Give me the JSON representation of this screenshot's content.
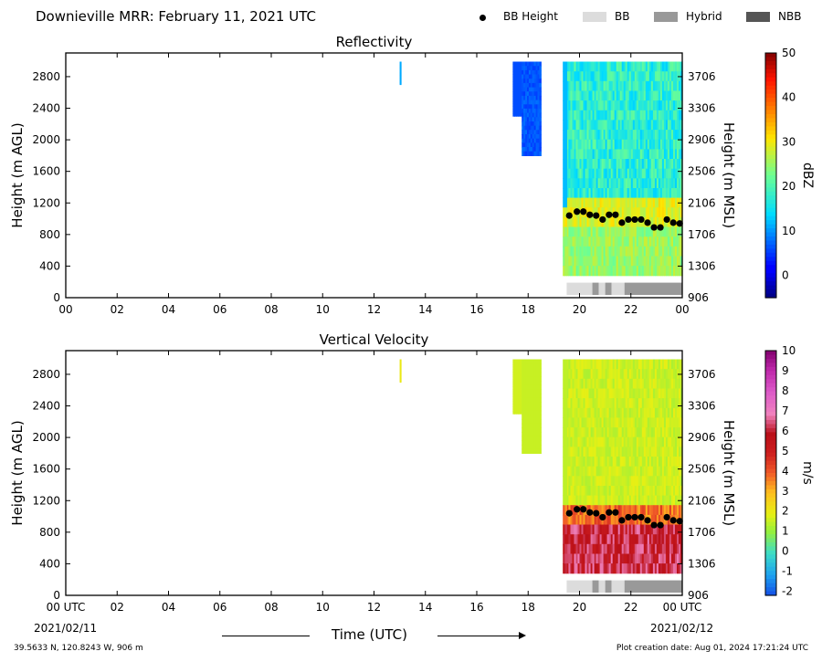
{
  "header": {
    "title": "Downieville MRR:  February 11, 2021 UTC",
    "legend": [
      {
        "label": "BB Height",
        "kind": "dot",
        "color": "#000000"
      },
      {
        "label": "BB",
        "kind": "swatch",
        "color": "#dcdcdc"
      },
      {
        "label": "Hybrid",
        "kind": "swatch",
        "color": "#999999"
      },
      {
        "label": "NBB",
        "kind": "swatch",
        "color": "#555555"
      }
    ]
  },
  "footer": {
    "location": "39.5633 N, 120.8243 W, 906 m",
    "creation": "Plot creation date: Aug 01, 2024 17:21:24 UTC",
    "xlabel": "Time (UTC)",
    "date_start": "2021/02/11",
    "date_end": "2021/02/12"
  },
  "chart_data": [
    {
      "type": "heatmap",
      "title": "Reflectivity",
      "ylabel": "Height (m AGL)",
      "y2label": "Height (m MSL)",
      "xlim": [
        0,
        24
      ],
      "ylim": [
        0,
        3100
      ],
      "xticks": [
        "00",
        "02",
        "04",
        "06",
        "08",
        "10",
        "12",
        "14",
        "16",
        "18",
        "20",
        "22",
        "00"
      ],
      "yticks": [
        0,
        400,
        800,
        1200,
        1600,
        2000,
        2400,
        2800
      ],
      "y2ticks": [
        "906",
        "1306",
        "1706",
        "2106",
        "2506",
        "2906",
        "3306",
        "3706"
      ],
      "colorbar": {
        "label": "dBZ",
        "min": -5,
        "max": 50,
        "ticks": [
          0,
          10,
          20,
          30,
          40,
          50
        ],
        "colormap": "jet"
      },
      "bb_height": {
        "x": [
          19.6,
          19.9,
          20.15,
          20.4,
          20.65,
          20.9,
          21.15,
          21.4,
          21.65,
          21.9,
          22.15,
          22.4,
          22.65,
          22.9,
          23.15,
          23.4,
          23.65,
          23.9
        ],
        "y": [
          1040,
          1090,
          1090,
          1050,
          1040,
          990,
          1050,
          1050,
          950,
          990,
          990,
          990,
          950,
          890,
          890,
          990,
          950,
          940
        ]
      },
      "bb_type": [
        {
          "start": 19.5,
          "end": 20.5,
          "type": "BB"
        },
        {
          "start": 20.5,
          "end": 20.75,
          "type": "Hybrid"
        },
        {
          "start": 20.75,
          "end": 21.0,
          "type": "BB"
        },
        {
          "start": 21.0,
          "end": 21.25,
          "type": "Hybrid"
        },
        {
          "start": 21.25,
          "end": 21.75,
          "type": "BB"
        },
        {
          "start": 21.75,
          "end": 24.0,
          "type": "Hybrid"
        }
      ]
    },
    {
      "type": "heatmap",
      "title": "Vertical Velocity",
      "ylabel": "Height (m AGL)",
      "y2label": "Height (m MSL)",
      "xlim": [
        0,
        24
      ],
      "ylim": [
        0,
        3100
      ],
      "xticks": [
        "00 UTC",
        "02",
        "04",
        "06",
        "08",
        "10",
        "12",
        "14",
        "16",
        "18",
        "20",
        "22",
        "00 UTC"
      ],
      "yticks": [
        0,
        400,
        800,
        1200,
        1600,
        2000,
        2400,
        2800
      ],
      "y2ticks": [
        "906",
        "1306",
        "1706",
        "2106",
        "2506",
        "2906",
        "3306",
        "3706"
      ],
      "colorbar": {
        "label": "m/s",
        "min": -2.2,
        "max": 10,
        "ticks": [
          -2,
          -1,
          0,
          1,
          2,
          3,
          4,
          5,
          6,
          7,
          8,
          9,
          10
        ],
        "colormap": "velocity"
      },
      "bb_height": {
        "x": [
          19.6,
          19.9,
          20.15,
          20.4,
          20.65,
          20.9,
          21.15,
          21.4,
          21.65,
          21.9,
          22.15,
          22.4,
          22.65,
          22.9,
          23.15,
          23.4,
          23.65,
          23.9
        ],
        "y": [
          1040,
          1090,
          1090,
          1050,
          1040,
          990,
          1050,
          1050,
          950,
          990,
          990,
          990,
          950,
          890,
          890,
          990,
          950,
          940
        ]
      },
      "bb_type": [
        {
          "start": 19.5,
          "end": 20.5,
          "type": "BB"
        },
        {
          "start": 20.5,
          "end": 20.75,
          "type": "Hybrid"
        },
        {
          "start": 20.75,
          "end": 21.0,
          "type": "BB"
        },
        {
          "start": 21.0,
          "end": 21.25,
          "type": "Hybrid"
        },
        {
          "start": 21.25,
          "end": 21.75,
          "type": "BB"
        },
        {
          "start": 21.75,
          "end": 24.0,
          "type": "Hybrid"
        }
      ]
    }
  ]
}
